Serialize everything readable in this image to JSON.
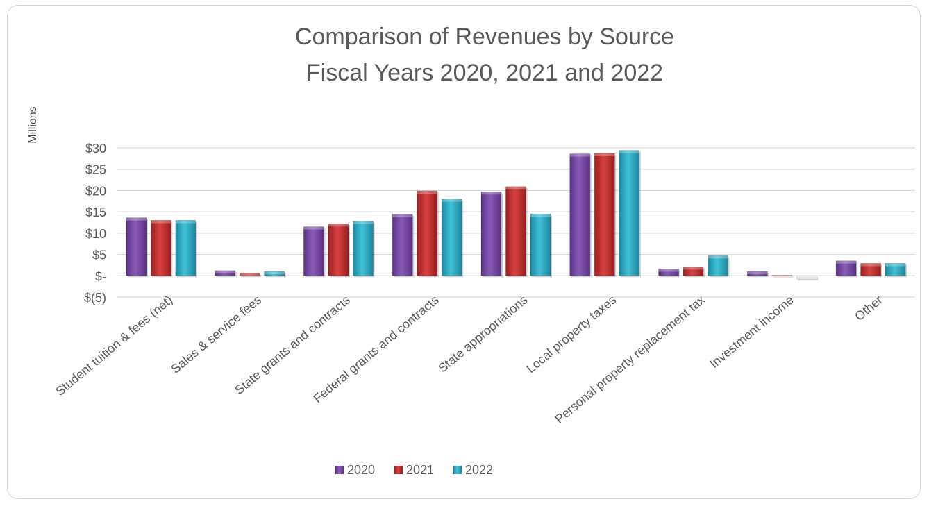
{
  "chart_data": {
    "type": "bar",
    "title_line1": "Comparison of Revenues by Source",
    "title_line2": "Fiscal Years 2020, 2021 and 2022",
    "ylabel": "Millions",
    "xlabel": "",
    "ylim": [
      -5,
      30
    ],
    "yticks": [
      {
        "value": 30,
        "label": "$30"
      },
      {
        "value": 25,
        "label": "$25"
      },
      {
        "value": 20,
        "label": "$20"
      },
      {
        "value": 15,
        "label": "$15"
      },
      {
        "value": 10,
        "label": "$10"
      },
      {
        "value": 5,
        "label": "$5"
      },
      {
        "value": 0,
        "label": "$-"
      },
      {
        "value": -5,
        "label": "$(5)"
      }
    ],
    "grid": true,
    "legend_position": "bottom-center",
    "categories": [
      "Student tuition & fees (net)",
      "Sales & service fees",
      "State grants and contracts",
      "Federal grants and contracts",
      "State appropriations",
      "Local property taxes",
      "Personal property replacement tax",
      "Investment income",
      "Other"
    ],
    "series": [
      {
        "name": "2020",
        "color": "#7b4aa6",
        "values": [
          13.6,
          1.2,
          11.5,
          14.4,
          19.7,
          28.6,
          1.6,
          1.0,
          3.5
        ]
      },
      {
        "name": "2021",
        "color": "#c2302f",
        "values": [
          13.0,
          0.6,
          12.2,
          19.9,
          20.9,
          28.7,
          2.1,
          0.1,
          2.9
        ]
      },
      {
        "name": "2022",
        "color": "#2fb0c8",
        "values": [
          13.0,
          1.0,
          12.8,
          18.0,
          14.5,
          29.4,
          4.7,
          -0.8,
          2.9
        ]
      }
    ]
  }
}
